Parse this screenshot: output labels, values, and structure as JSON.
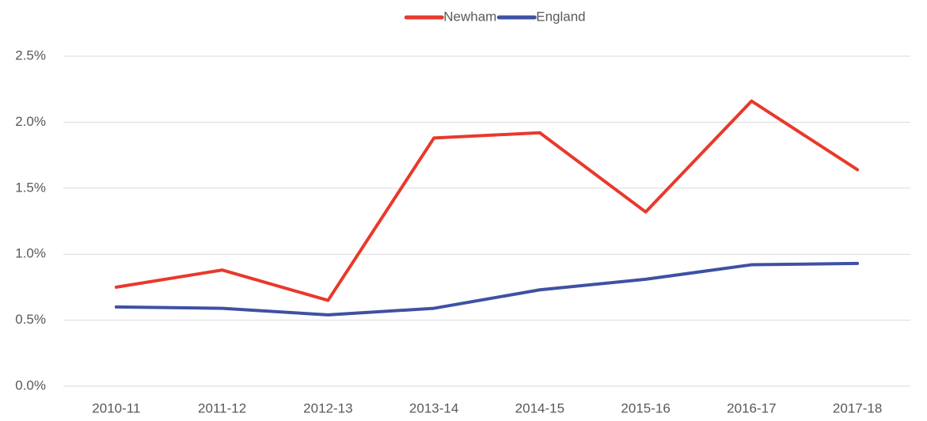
{
  "chart_data": {
    "type": "line",
    "categories": [
      "2010-11",
      "2011-12",
      "2012-13",
      "2013-14",
      "2014-15",
      "2015-16",
      "2016-17",
      "2017-18"
    ],
    "series": [
      {
        "name": "Newham",
        "color": "#e8392b",
        "values": [
          0.75,
          0.88,
          0.65,
          1.88,
          1.92,
          1.32,
          2.16,
          1.64
        ]
      },
      {
        "name": "England",
        "color": "#3f51a3",
        "values": [
          0.6,
          0.59,
          0.54,
          0.59,
          0.73,
          0.81,
          0.92,
          0.93
        ]
      }
    ],
    "ylim": [
      0,
      2.5
    ],
    "yticks": [
      {
        "value": 0,
        "label": "0.0%"
      },
      {
        "value": 0.5,
        "label": "0.5%"
      },
      {
        "value": 1,
        "label": "1.0%"
      },
      {
        "value": 1.5,
        "label": "1.5%"
      },
      {
        "value": 2,
        "label": "2.0%"
      },
      {
        "value": 2.5,
        "label": "2.5%"
      }
    ],
    "grid": true,
    "legend": "top"
  }
}
